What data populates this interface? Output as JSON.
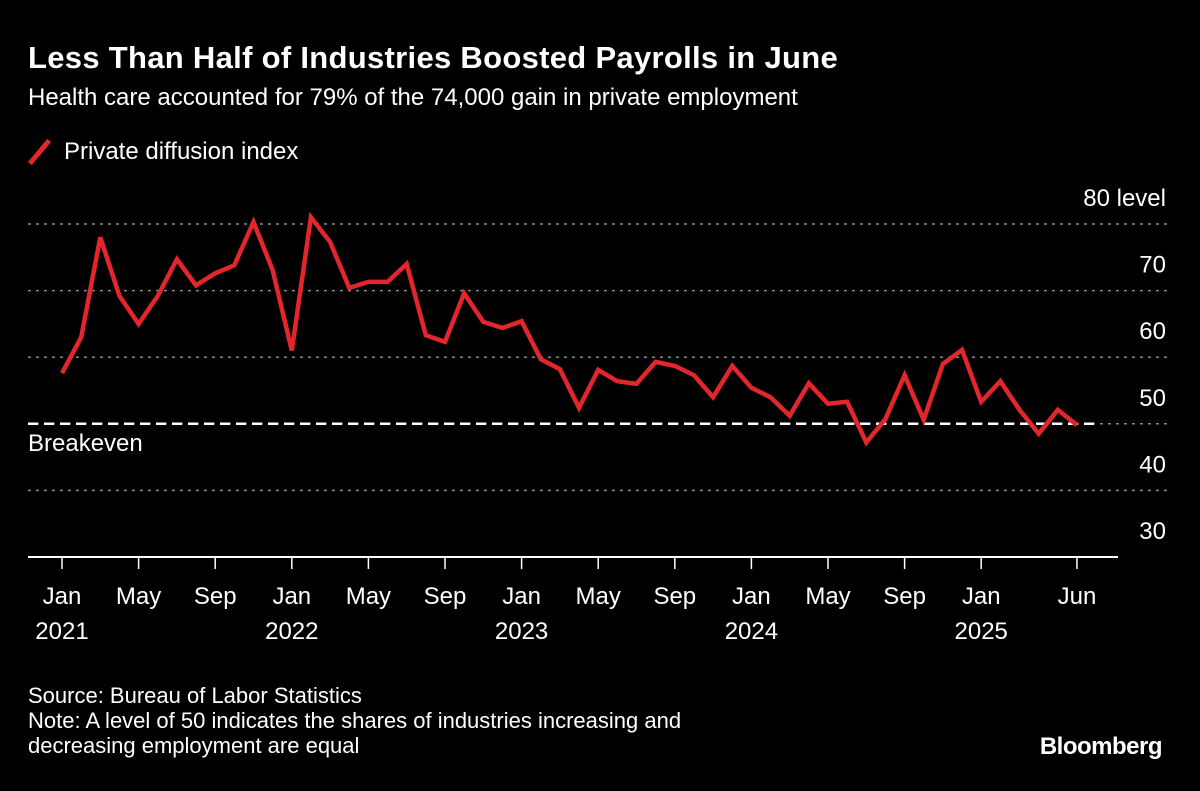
{
  "title": "Less Than Half of Industries Boosted Payrolls in June",
  "subtitle": "Health care accounted for 79% of the 74,000 gain in private employment",
  "source": "Source: Bureau of Labor Statistics",
  "note_line1": "Note: A level of 50 indicates the shares of industries increasing and",
  "note_line2": "decreasing employment are equal",
  "logo": "Bloomberg",
  "chart_data": {
    "type": "line",
    "title": "Less Than Half of Industries Boosted Payrolls in June",
    "ylabel": "",
    "xlabel": "",
    "ylim": [
      30,
      80
    ],
    "yticks": [
      30,
      40,
      50,
      60,
      70,
      80
    ],
    "ytick_labels": [
      "30",
      "40",
      "50",
      "60",
      "70",
      "80 level"
    ],
    "grid": true,
    "legend_position": "top-left",
    "xtick_labels": [
      {
        "month": "2021-01",
        "line1": "Jan",
        "line2": "2021"
      },
      {
        "month": "2021-05",
        "line1": "May",
        "line2": ""
      },
      {
        "month": "2021-09",
        "line1": "Sep",
        "line2": ""
      },
      {
        "month": "2022-01",
        "line1": "Jan",
        "line2": "2022"
      },
      {
        "month": "2022-05",
        "line1": "May",
        "line2": ""
      },
      {
        "month": "2022-09",
        "line1": "Sep",
        "line2": ""
      },
      {
        "month": "2023-01",
        "line1": "Jan",
        "line2": "2023"
      },
      {
        "month": "2023-05",
        "line1": "May",
        "line2": ""
      },
      {
        "month": "2023-09",
        "line1": "Sep",
        "line2": ""
      },
      {
        "month": "2024-01",
        "line1": "Jan",
        "line2": "2024"
      },
      {
        "month": "2024-05",
        "line1": "May",
        "line2": ""
      },
      {
        "month": "2024-09",
        "line1": "Sep",
        "line2": ""
      },
      {
        "month": "2025-01",
        "line1": "Jan",
        "line2": "2025"
      },
      {
        "month": "2025-06",
        "line1": "Jun",
        "line2": ""
      }
    ],
    "reference_line": {
      "value": 50,
      "label": "Breakeven"
    },
    "series": [
      {
        "name": "Private diffusion index",
        "color": "#e3262b",
        "start": "2021-01",
        "values": [
          57.6,
          63.0,
          78.0,
          69.2,
          65.0,
          69.2,
          74.7,
          70.8,
          72.6,
          73.8,
          80.3,
          73.1,
          61.0,
          81.0,
          77.3,
          70.4,
          71.3,
          71.3,
          74.0,
          63.3,
          62.3,
          69.6,
          65.3,
          64.4,
          65.4,
          59.7,
          58.2,
          52.4,
          58.1,
          56.4,
          56.0,
          59.3,
          58.7,
          57.3,
          54.0,
          58.7,
          55.4,
          54.0,
          51.2,
          56.1,
          53.0,
          53.3,
          47.2,
          50.7,
          57.3,
          50.6,
          59.0,
          61.1,
          53.3,
          56.4,
          52.1,
          48.5,
          52.1,
          49.8
        ]
      }
    ]
  }
}
